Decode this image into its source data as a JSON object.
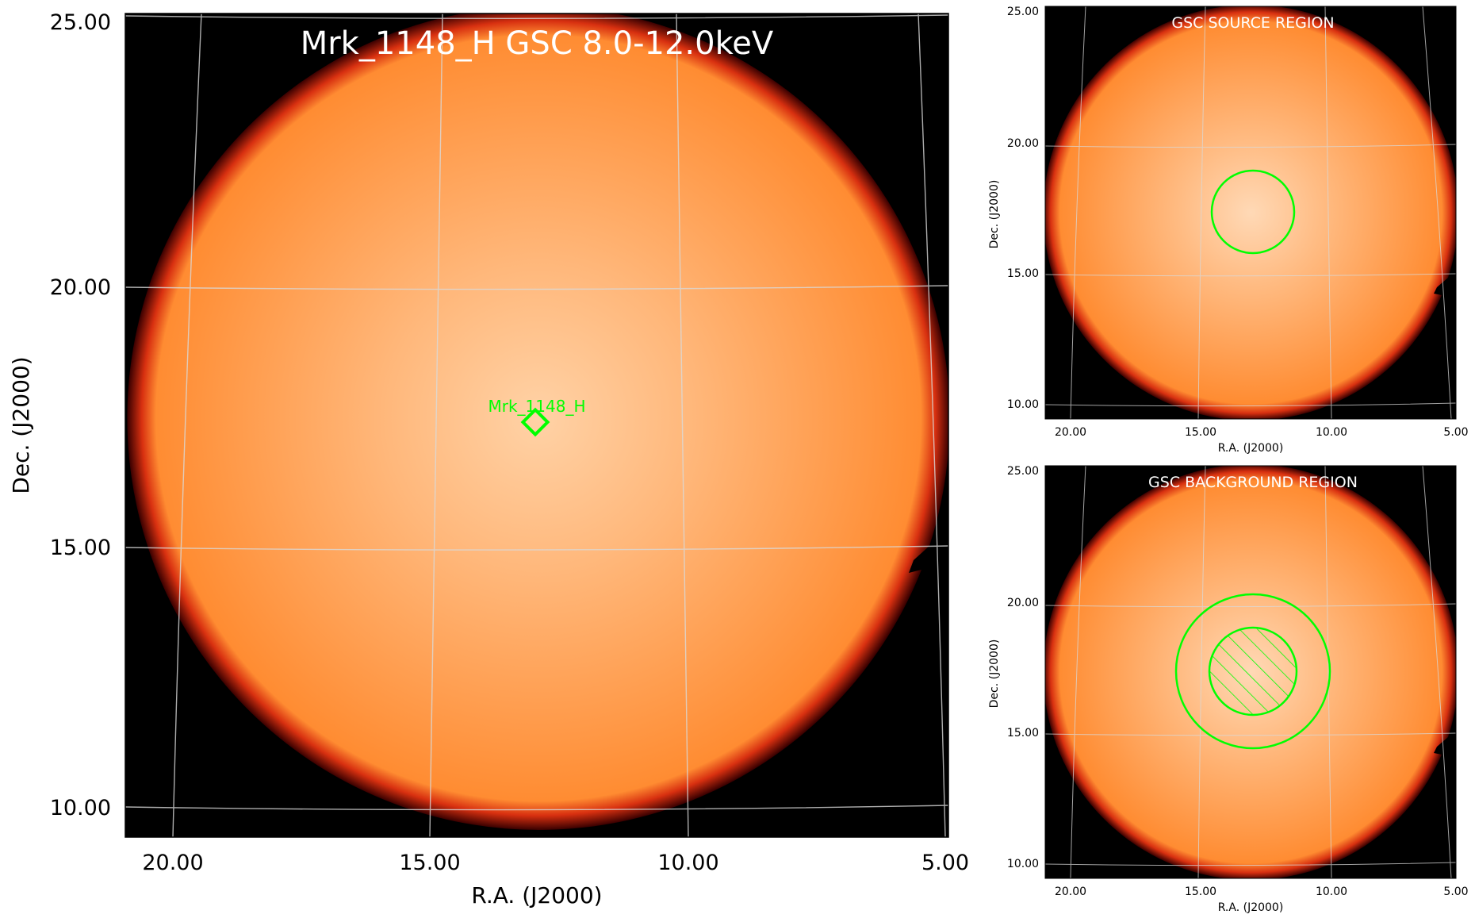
{
  "colors": {
    "sky": "#ff8c32",
    "sky_center": "#ffd2a6",
    "edge_dark": "#3a0000",
    "edge_red": "#d83010",
    "background": "#000000",
    "marker": "#00ff00",
    "grid": "#d9d9d9",
    "title_text": "#ffffff"
  },
  "main_panel": {
    "title": "Mrk_1148_H GSC 8.0-12.0keV",
    "source_label": "Mrk_1148_H",
    "x_axis_label": "R.A. (J2000)",
    "y_axis_label": "Dec. (J2000)",
    "x_ticks": [
      "20.00",
      "15.00",
      "10.00",
      "5.00"
    ],
    "y_ticks": [
      "25.00",
      "20.00",
      "15.00",
      "10.00"
    ],
    "marker_icon": "diamond-marker-icon"
  },
  "source_panel": {
    "title": "GSC SOURCE REGION",
    "x_axis_label": "R.A. (J2000)",
    "y_axis_label": "Dec. (J2000)",
    "x_ticks": [
      "20.00",
      "15.00",
      "10.00",
      "5.00"
    ],
    "y_ticks": [
      "25.00",
      "20.00",
      "15.00",
      "10.00"
    ]
  },
  "background_panel": {
    "title": "GSC BACKGROUND REGION",
    "x_axis_label": "R.A. (J2000)",
    "y_axis_label": "Dec. (J2000)",
    "x_ticks": [
      "20.00",
      "15.00",
      "10.00",
      "5.00"
    ],
    "y_ticks": [
      "25.00",
      "20.00",
      "15.00",
      "10.00"
    ]
  }
}
